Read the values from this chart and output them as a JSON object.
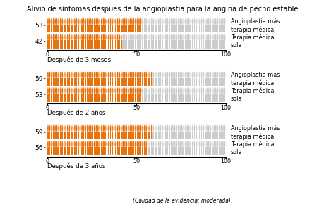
{
  "title": "Alivio de síntomas después de la angioplastia para la angina de pecho estable",
  "groups": [
    {
      "label": "Después de 3 meses",
      "rows": [
        {
          "value": 53,
          "label": "53",
          "legend": "Angioplastia más\nterapia médica"
        },
        {
          "value": 42,
          "label": "42",
          "legend": "Terapia médica\nsola"
        }
      ]
    },
    {
      "label": "Después de 2 años",
      "rows": [
        {
          "value": 59,
          "label": "59",
          "legend": "Angioplastia más\nterapia médica"
        },
        {
          "value": 53,
          "label": "53",
          "legend": "Terapia médica\nsola"
        }
      ]
    },
    {
      "label": "Después de 3 años",
      "rows": [
        {
          "value": 59,
          "label": "59",
          "legend": "Angioplastia más\nterapia médica"
        },
        {
          "value": 56,
          "label": "56",
          "legend": "Terapia médica\nsola"
        }
      ]
    }
  ],
  "orange_color": "#E8720C",
  "gray_color": "#CCCCCC",
  "total": 100,
  "footnote": "(Calidad de la evidencia: moderada)",
  "background_color": "#FFFFFF",
  "title_fontsize": 7.0,
  "label_fontsize": 6.5,
  "tick_fontsize": 5.8,
  "legend_fontsize": 5.8,
  "group_label_fontsize": 6.2
}
